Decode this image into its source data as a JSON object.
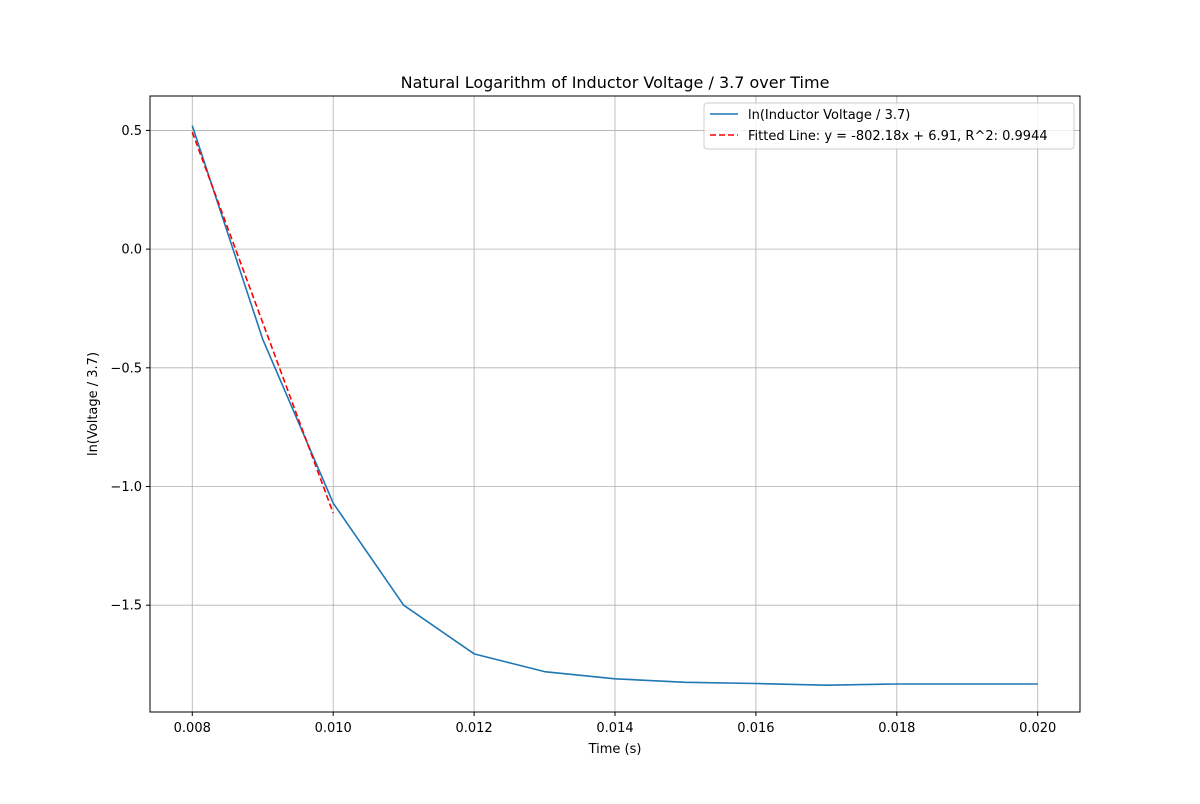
{
  "chart_data": {
    "type": "line",
    "title": "Natural Logarithm of Inductor Voltage / 3.7 over Time",
    "xlabel": "Time (s)",
    "ylabel": "ln(Voltage / 3.7)",
    "xlim": [
      0.0074,
      0.0206
    ],
    "ylim": [
      -1.95,
      0.645
    ],
    "grid": true,
    "legend_position": "top-right",
    "x_ticks": [
      0.008,
      0.01,
      0.012,
      0.014,
      0.016,
      0.018,
      0.02
    ],
    "x_tick_labels": [
      "0.008",
      "0.010",
      "0.012",
      "0.014",
      "0.016",
      "0.018",
      "0.020"
    ],
    "y_ticks": [
      0.5,
      0.0,
      -0.5,
      -1.0,
      -1.5
    ],
    "y_tick_labels": [
      "0.5",
      "0.0",
      "−0.5",
      "−1.0",
      "−1.5"
    ],
    "series": [
      {
        "name": "ln(Inductor Voltage / 3.7)",
        "color": "#1f77b4",
        "style": "solid",
        "x": [
          0.008,
          0.009,
          0.01,
          0.011,
          0.012,
          0.013,
          0.014,
          0.015,
          0.016,
          0.017,
          0.018,
          0.019,
          0.02
        ],
        "y": [
          0.52,
          -0.38,
          -1.07,
          -1.5,
          -1.705,
          -1.78,
          -1.81,
          -1.825,
          -1.83,
          -1.837,
          -1.832,
          -1.832,
          -1.832
        ]
      },
      {
        "name": "Fitted Line: y = -802.18x + 6.91, R^2: 0.9944",
        "color": "#ff0000",
        "style": "dashed",
        "x": [
          0.008,
          0.01
        ],
        "y": [
          0.4926,
          -1.1118
        ]
      }
    ]
  }
}
